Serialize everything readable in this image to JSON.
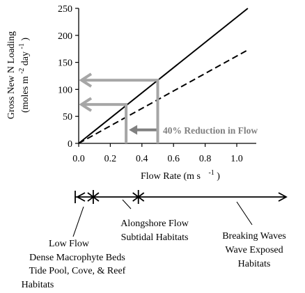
{
  "chart_data": {
    "type": "line",
    "xlabel": "Flow Rate (m s",
    "xlabel_exp": "-1",
    "xlabel_close": ")",
    "ylabel_line1": "Gross New N Loading",
    "ylabel_line2_pre": "(moles m",
    "ylabel_line2_exp1": "-2",
    "ylabel_line2_mid": " day",
    "ylabel_line2_exp2": "-1",
    "ylabel_line2_post": ")",
    "xlim": [
      0,
      1.1
    ],
    "ylim": [
      0,
      250
    ],
    "x_ticks": [
      0.0,
      0.2,
      0.4,
      0.6,
      0.8,
      1.0
    ],
    "x_tick_labels": [
      "0.0",
      "0.2",
      "0.4",
      "0.6",
      "0.8",
      "1.0"
    ],
    "y_ticks": [
      0,
      50,
      100,
      150,
      200,
      250
    ],
    "y_tick_labels": [
      "0",
      "50",
      "100",
      "150",
      "200",
      "250"
    ],
    "series": [
      {
        "style": "solid",
        "color": "#000000",
        "x": [
          0,
          1.07
        ],
        "y": [
          0,
          250
        ]
      },
      {
        "style": "dashed",
        "color": "#000000",
        "x": [
          0,
          1.07
        ],
        "y": [
          0,
          173
        ]
      }
    ],
    "markers": {
      "color": "#a6a6a6",
      "flow_values": [
        0.3,
        0.5
      ],
      "loading_values": [
        117,
        72
      ],
      "reduction_arrow": {
        "from_x": 0.5,
        "to_x": 0.3,
        "y": 25
      }
    },
    "annotation": "40% Reduction in Flow",
    "annotation_color": "#808080"
  },
  "habitat_scale": {
    "break_values": [
      0.0,
      0.12,
      0.42
    ],
    "labels": {
      "low_line1": "Low Flow",
      "low_line2": "Dense Macrophyte Beds",
      "low_line3": "Tide Pool, Cove, & Reef",
      "low_line4": "Habitats",
      "along_line1": "Alongshore Flow",
      "along_line2": "Subtidal Habitats",
      "break_line1": "Breaking Waves",
      "break_line2": "Wave Exposed",
      "break_line3": "Habitats"
    }
  }
}
